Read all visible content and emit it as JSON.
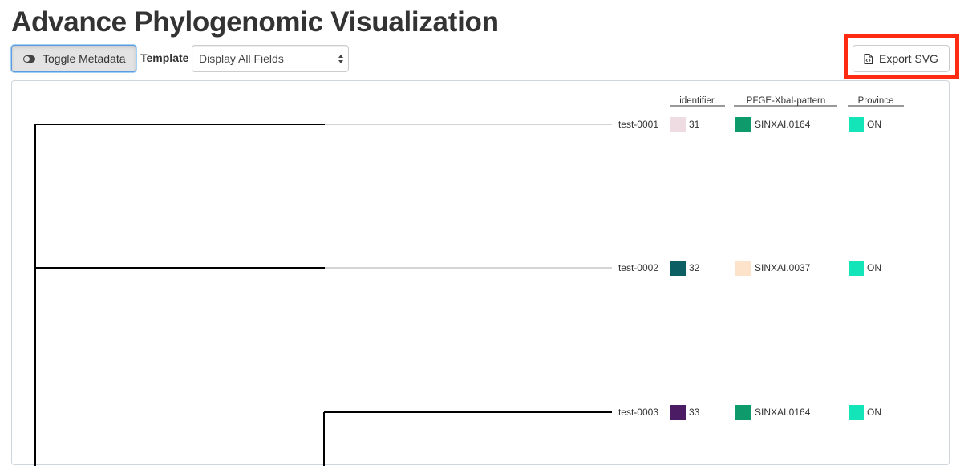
{
  "title": "Advance Phylogenomic Visualization",
  "toolbar": {
    "toggle_label": "Toggle Metadata",
    "template_label": "Template",
    "template_value": "Display All Fields",
    "export_label": "Export SVG"
  },
  "metadata_columns": [
    "identifier",
    "PFGE-XbaI-pattern",
    "Province"
  ],
  "leaves": [
    {
      "label": "test-0001",
      "identifier": {
        "value": "31",
        "color": "#efdbe2"
      },
      "pfge": {
        "value": "SINXAI.0164",
        "color": "#0f9a6c"
      },
      "province": {
        "value": "ON",
        "color": "#13e5b8"
      }
    },
    {
      "label": "test-0002",
      "identifier": {
        "value": "32",
        "color": "#0c5f62"
      },
      "pfge": {
        "value": "SINXAI.0037",
        "color": "#fde3c9"
      },
      "province": {
        "value": "ON",
        "color": "#13e5b8"
      }
    },
    {
      "label": "test-0003",
      "identifier": {
        "value": "33",
        "color": "#4b1b63"
      },
      "pfge": {
        "value": "SINXAI.0164",
        "color": "#0f9a6c"
      },
      "province": {
        "value": "ON",
        "color": "#13e5b8"
      }
    }
  ],
  "colors": {
    "highlight": "#ff2a12",
    "focus_border": "#5b9de0",
    "branch": "#000000",
    "guide_line": "#aaaaaa"
  },
  "icons": {
    "toggle": "toggle-off-icon",
    "select": "select-arrows-icon",
    "export": "file-code-icon"
  }
}
